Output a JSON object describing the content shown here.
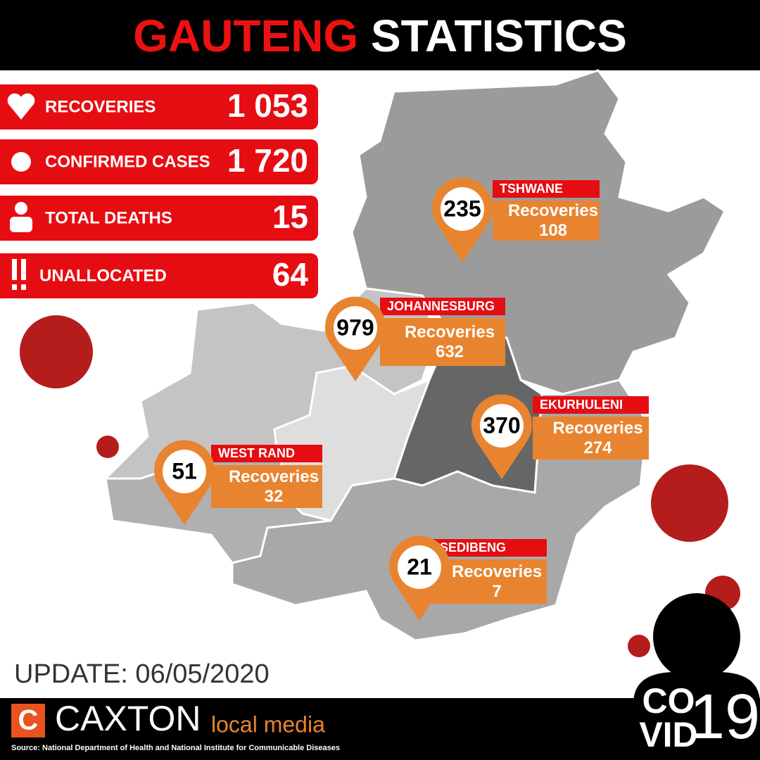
{
  "header": {
    "title_highlight": "GAUTENG",
    "title_rest": "STATISTICS"
  },
  "stats": [
    {
      "label": "RECOVERIES",
      "value": "1 053"
    },
    {
      "label": "CONFIRMED CASES",
      "value": "1 720"
    },
    {
      "label": "TOTAL DEATHS",
      "value": "15"
    },
    {
      "label": "UNALLOCATED",
      "value": "64"
    }
  ],
  "regions": [
    {
      "name": "TSHWANE",
      "cases": "235",
      "recoveries_label": "Recoveries",
      "recoveries": "108"
    },
    {
      "name": "JOHANNESBURG",
      "cases": "979",
      "recoveries_label": "Recoveries",
      "recoveries": "632"
    },
    {
      "name": "EKURHULENI",
      "cases": "370",
      "recoveries_label": "Recoveries",
      "recoveries": "274"
    },
    {
      "name": "WEST RAND",
      "cases": "51",
      "recoveries_label": "Recoveries",
      "recoveries": "32"
    },
    {
      "name": "SEDIBENG",
      "cases": "21",
      "recoveries_label": "Recoveries",
      "recoveries": "7"
    }
  ],
  "update": "UPDATE: 06/05/2020",
  "logo": {
    "name": "CAXTON",
    "tagline": "local media"
  },
  "covid": {
    "line1": "CO",
    "line2": "VID",
    "number": "19"
  },
  "source": "Source: National Department of Health and National Institute for Communicable Diseases"
}
